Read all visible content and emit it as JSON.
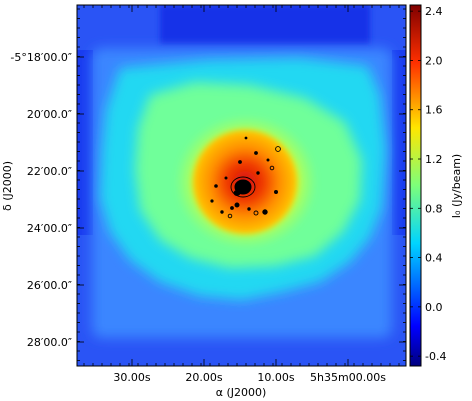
{
  "chart_data": {
    "type": "heatmap",
    "colormap": "jet",
    "xlabel": "α (J2000)",
    "ylabel": "δ (J2000)",
    "colorbar_label": "I₀ (Jy/beam)",
    "x_ticks": [
      "30.00s",
      "20.00s",
      "10.00s",
      "5h35m00.00s"
    ],
    "y_ticks": [
      "-5°18′00.0″",
      "20′00.0″",
      "22′00.0″",
      "24′00.0″",
      "26′00.0″",
      "28′00.0″"
    ],
    "colorbar_ticks": [
      -0.4,
      0.0,
      0.4,
      0.8,
      1.2,
      1.6,
      2.0,
      2.4
    ],
    "color_range": [
      -0.48,
      2.45
    ],
    "peak_value": 2.4,
    "background_value": 0.2,
    "grid": false
  }
}
